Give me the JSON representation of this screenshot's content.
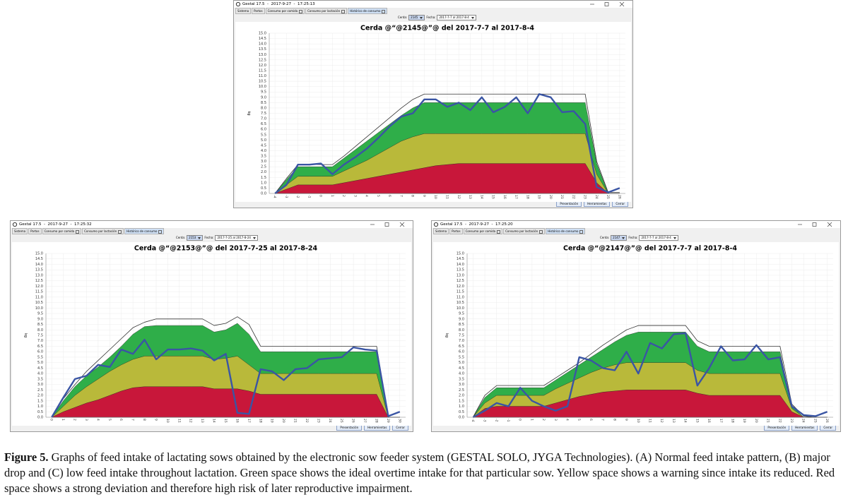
{
  "windows": [
    {
      "title": "Gestal 17.5  -  2017-9-27  -  17:25:13",
      "tabs": [
        "Sistema",
        "Partos",
        "Consumo por comida",
        "Consumo por lactación",
        "Histórico de consumo"
      ],
      "sow_label": "Cerda:",
      "sow": "2145",
      "date_label": "Fecha:",
      "range": "2017-7-7 al 2017-8-4",
      "buttons": [
        "Presentación",
        "Herramientas",
        "Cerrar"
      ]
    },
    {
      "title": "Gestal 17.5  -  2017-9-27  -  17:25:32",
      "tabs": [
        "Sistema",
        "Partos",
        "Consumo por comida",
        "Consumo por lactación",
        "Histórico de consumo"
      ],
      "sow_label": "Cerda:",
      "sow": "2153",
      "date_label": "Fecha:",
      "range": "2017-7-25 al 2017-8-24",
      "buttons": [
        "Presentación",
        "Herramientas",
        "Cerrar"
      ]
    },
    {
      "title": "Gestal 17.5  -  2017-9-27  -  17:25:20",
      "tabs": [
        "Sistema",
        "Partos",
        "Consumo por comida",
        "Consumo por lactación",
        "Histórico de consumo"
      ],
      "sow_label": "Cerda:",
      "sow": "2147",
      "date_label": "Fecha:",
      "range": "2017-7-7 al 2017-8-4",
      "buttons": [
        "Presentación",
        "Herramientas",
        "Cerrar"
      ]
    }
  ],
  "chart_data": [
    {
      "type": "area",
      "title": "Cerda @“@2145@”@ del 2017-7-7 al 2017-8-4",
      "ylabel": "kg",
      "grid": true,
      "categories": [
        "-4",
        "-3",
        "-2",
        "-1",
        "0",
        "1",
        "2",
        "3",
        "4",
        "5",
        "6",
        "7",
        "8",
        "9",
        "10",
        "11",
        "12",
        "13",
        "14",
        "15",
        "16",
        "17",
        "18",
        "19",
        "20",
        "21",
        "22",
        "23",
        "24",
        "25",
        "26"
      ],
      "ylim": [
        0,
        15
      ],
      "yticks": [
        {
          "value": 0,
          "label": "0.0"
        },
        {
          "value": 0.5,
          "label": "0.5"
        },
        {
          "value": 1,
          "label": "1.0"
        },
        {
          "value": 1.5,
          "label": "1.5"
        },
        {
          "value": 2,
          "label": "2.0"
        },
        {
          "value": 2.5,
          "label": "2.5"
        },
        {
          "value": 3,
          "label": "3.0"
        },
        {
          "value": 3.5,
          "label": "3.5"
        },
        {
          "value": 4,
          "label": "4.0"
        },
        {
          "value": 4.5,
          "label": "4.5"
        },
        {
          "value": 5,
          "label": "5.0"
        },
        {
          "value": 5.5,
          "label": "5.5"
        },
        {
          "value": 6,
          "label": "6.0"
        },
        {
          "value": 6.5,
          "label": "6.5"
        },
        {
          "value": 7,
          "label": "7.0"
        },
        {
          "value": 7.5,
          "label": "7.5"
        },
        {
          "value": 8,
          "label": "8.0"
        },
        {
          "value": 8.5,
          "label": "8.5"
        },
        {
          "value": 9,
          "label": "9.0"
        },
        {
          "value": 9.5,
          "label": "9.5"
        },
        {
          "value": 10,
          "label": "10.0"
        },
        {
          "value": 10.5,
          "label": "10.5"
        },
        {
          "value": 11,
          "label": "11.0"
        },
        {
          "value": 11.5,
          "label": "11.5"
        },
        {
          "value": 12,
          "label": "12.0"
        },
        {
          "value": 12.5,
          "label": "12.5"
        },
        {
          "value": 13,
          "label": "13.0"
        },
        {
          "value": 13.5,
          "label": "13.5"
        },
        {
          "value": 14,
          "label": "14.0"
        },
        {
          "value": 14.5,
          "label": "14.5"
        },
        {
          "value": 15,
          "label": "15.0"
        }
      ],
      "series": [
        {
          "color": "#2fae49",
          "area": true,
          "values": [
            0,
            1.3,
            2.5,
            2.5,
            2.5,
            2.5,
            3.3,
            4.1,
            4.9,
            5.7,
            6.5,
            7.3,
            8.0,
            8.5,
            8.5,
            8.5,
            8.5,
            8.5,
            8.5,
            8.5,
            8.5,
            8.5,
            8.5,
            8.5,
            8.5,
            8.5,
            8.5,
            8.5,
            2.8,
            0,
            0
          ]
        },
        {
          "color": "#b9b93a",
          "area": true,
          "values": [
            0,
            0.8,
            1.6,
            1.6,
            1.6,
            1.6,
            2.1,
            2.6,
            3.1,
            3.7,
            4.3,
            4.9,
            5.3,
            5.6,
            5.6,
            5.6,
            5.6,
            5.6,
            5.6,
            5.6,
            5.6,
            5.6,
            5.6,
            5.6,
            5.6,
            5.6,
            5.6,
            5.6,
            1.8,
            0,
            0
          ]
        },
        {
          "color": "#c8173a",
          "area": true,
          "values": [
            0,
            0.4,
            0.8,
            0.8,
            0.8,
            0.8,
            1.0,
            1.2,
            1.4,
            1.6,
            1.8,
            2.0,
            2.2,
            2.4,
            2.6,
            2.7,
            2.8,
            2.8,
            2.8,
            2.8,
            2.8,
            2.8,
            2.8,
            2.8,
            2.8,
            2.8,
            2.8,
            2.8,
            1.0,
            0,
            0
          ]
        },
        {
          "color": "#333333",
          "area": false,
          "values": [
            0,
            1.4,
            2.7,
            2.7,
            2.7,
            2.7,
            3.5,
            4.4,
            5.3,
            6.2,
            7.1,
            8.0,
            8.8,
            9.3,
            9.3,
            9.3,
            9.3,
            9.3,
            9.3,
            9.3,
            9.3,
            9.3,
            9.3,
            9.3,
            9.3,
            9.3,
            9.3,
            9.3,
            3.0,
            0.1,
            0.1
          ]
        },
        {
          "color": "#3a55a4",
          "area": false,
          "values": [
            0,
            0.8,
            2.7,
            2.7,
            2.8,
            1.8,
            2.7,
            3.4,
            4.2,
            5.2,
            6.3,
            7.2,
            7.5,
            8.8,
            8.8,
            8.1,
            8.5,
            7.8,
            9.0,
            7.6,
            8.1,
            9.0,
            7.5,
            9.3,
            9.0,
            7.6,
            7.7,
            6.5,
            0.6,
            0.1,
            0.5
          ]
        }
      ]
    },
    {
      "type": "area",
      "title": "Cerda @“@2153@”@ del 2017-7-25 al 2017-8-24",
      "ylabel": "kg",
      "grid": true,
      "categories": [
        "0",
        "1",
        "2",
        "3",
        "4",
        "5",
        "6",
        "7",
        "8",
        "9",
        "10",
        "11",
        "12",
        "13",
        "14",
        "15",
        "16",
        "17",
        "18",
        "19",
        "20",
        "21",
        "22",
        "23",
        "24",
        "25",
        "26",
        "27",
        "28",
        "29",
        "30"
      ],
      "ylim": [
        0,
        15
      ],
      "yticks": [
        {
          "value": 0,
          "label": "0.0"
        },
        {
          "value": 0.5,
          "label": "0.5"
        },
        {
          "value": 1,
          "label": "1.0"
        },
        {
          "value": 1.5,
          "label": "1.5"
        },
        {
          "value": 2,
          "label": "2.0"
        },
        {
          "value": 2.5,
          "label": "2.5"
        },
        {
          "value": 3,
          "label": "3.0"
        },
        {
          "value": 3.5,
          "label": "3.5"
        },
        {
          "value": 4,
          "label": "4.0"
        },
        {
          "value": 4.5,
          "label": "4.5"
        },
        {
          "value": 5,
          "label": "5.0"
        },
        {
          "value": 5.5,
          "label": "5.5"
        },
        {
          "value": 6,
          "label": "6.0"
        },
        {
          "value": 6.5,
          "label": "6.5"
        },
        {
          "value": 7,
          "label": "7.0"
        },
        {
          "value": 7.5,
          "label": "7.5"
        },
        {
          "value": 8,
          "label": "8.0"
        },
        {
          "value": 8.5,
          "label": "8.5"
        },
        {
          "value": 9,
          "label": "9.0"
        },
        {
          "value": 9.5,
          "label": "9.5"
        },
        {
          "value": 10,
          "label": "10.0"
        },
        {
          "value": 10.5,
          "label": "10.5"
        },
        {
          "value": 11,
          "label": "11.0"
        },
        {
          "value": 11.5,
          "label": "11.5"
        },
        {
          "value": 12,
          "label": "12.0"
        },
        {
          "value": 12.5,
          "label": "12.5"
        },
        {
          "value": 13,
          "label": "13.0"
        },
        {
          "value": 13.5,
          "label": "13.5"
        },
        {
          "value": 14,
          "label": "14.0"
        },
        {
          "value": 14.5,
          "label": "14.5"
        },
        {
          "value": 15,
          "label": "15.0"
        }
      ],
      "series": [
        {
          "color": "#2fae49",
          "area": true,
          "values": [
            0,
            1.5,
            2.8,
            3.8,
            4.6,
            5.5,
            6.5,
            7.6,
            8.3,
            8.4,
            8.4,
            8.4,
            8.4,
            8.4,
            7.8,
            8.0,
            8.6,
            7.6,
            6.0,
            6.0,
            6.0,
            6.0,
            6.0,
            6.0,
            6.0,
            6.0,
            6.0,
            6.0,
            6.0,
            0,
            0
          ]
        },
        {
          "color": "#b9b93a",
          "area": true,
          "values": [
            0,
            1.0,
            2.0,
            2.8,
            3.5,
            4.2,
            4.8,
            5.3,
            5.6,
            5.6,
            5.6,
            5.6,
            5.6,
            5.6,
            5.3,
            5.4,
            5.6,
            4.8,
            4.0,
            4.0,
            4.0,
            4.0,
            4.0,
            4.0,
            4.0,
            4.0,
            4.0,
            4.0,
            4.0,
            0,
            0
          ]
        },
        {
          "color": "#c8173a",
          "area": true,
          "values": [
            0,
            0.5,
            0.9,
            1.3,
            1.6,
            2.0,
            2.4,
            2.7,
            2.8,
            2.8,
            2.8,
            2.8,
            2.8,
            2.8,
            2.6,
            2.6,
            2.6,
            2.4,
            2.1,
            2.1,
            2.1,
            2.1,
            2.1,
            2.1,
            2.1,
            2.1,
            2.1,
            2.1,
            2.1,
            0,
            0
          ]
        },
        {
          "color": "#333333",
          "area": false,
          "values": [
            0,
            1.7,
            3.0,
            4.2,
            5.2,
            6.2,
            7.2,
            8.2,
            8.7,
            9.0,
            9.0,
            9.0,
            9.0,
            9.0,
            8.4,
            8.6,
            9.2,
            8.5,
            6.5,
            6.5,
            6.5,
            6.5,
            6.5,
            6.5,
            6.5,
            6.5,
            6.5,
            6.5,
            6.5,
            0,
            0
          ]
        },
        {
          "color": "#3a55a4",
          "area": false,
          "values": [
            0,
            1.8,
            3.5,
            3.8,
            4.8,
            4.6,
            6.2,
            5.8,
            7.1,
            5.3,
            6.2,
            6.2,
            6.3,
            6.1,
            5.2,
            5.8,
            0.4,
            0.3,
            4.4,
            4.2,
            3.4,
            4.4,
            4.5,
            5.3,
            5.4,
            5.5,
            6.4,
            6.2,
            6.1,
            0.1,
            0.5
          ]
        }
      ]
    },
    {
      "type": "area",
      "title": "Cerda @“@2147@”@ del 2017-7-7 al 2017-8-4",
      "ylabel": "kg",
      "grid": true,
      "categories": [
        "-4",
        "-3",
        "-2",
        "-1",
        "0",
        "1",
        "2",
        "3",
        "4",
        "5",
        "6",
        "7",
        "8",
        "9",
        "10",
        "11",
        "12",
        "13",
        "14",
        "15",
        "16",
        "17",
        "18",
        "19",
        "20",
        "21",
        "22",
        "23",
        "24",
        "25",
        "26"
      ],
      "ylim": [
        0,
        15
      ],
      "yticks": [
        {
          "value": 0,
          "label": "0.0"
        },
        {
          "value": 0.5,
          "label": "0.5"
        },
        {
          "value": 1,
          "label": "1.0"
        },
        {
          "value": 1.5,
          "label": "1.5"
        },
        {
          "value": 2,
          "label": "2.0"
        },
        {
          "value": 2.5,
          "label": "2.5"
        },
        {
          "value": 3,
          "label": "3.0"
        },
        {
          "value": 3.5,
          "label": "3.5"
        },
        {
          "value": 4,
          "label": "4.0"
        },
        {
          "value": 4.5,
          "label": "4.5"
        },
        {
          "value": 5,
          "label": "5.0"
        },
        {
          "value": 5.5,
          "label": "5.5"
        },
        {
          "value": 6,
          "label": "6.0"
        },
        {
          "value": 6.5,
          "label": "6.5"
        },
        {
          "value": 7,
          "label": "7.0"
        },
        {
          "value": 7.5,
          "label": "7.5"
        },
        {
          "value": 8,
          "label": "8.0"
        },
        {
          "value": 8.5,
          "label": "8.5"
        },
        {
          "value": 9,
          "label": "9.0"
        },
        {
          "value": 9.5,
          "label": "9.5"
        },
        {
          "value": 10,
          "label": "10.0"
        },
        {
          "value": 10.5,
          "label": "10.5"
        },
        {
          "value": 11,
          "label": "11.0"
        },
        {
          "value": 11.5,
          "label": "11.5"
        },
        {
          "value": 12,
          "label": "12.0"
        },
        {
          "value": 12.5,
          "label": "12.5"
        },
        {
          "value": 13,
          "label": "13.0"
        },
        {
          "value": 13.5,
          "label": "13.5"
        },
        {
          "value": 14,
          "label": "14.0"
        },
        {
          "value": 14.5,
          "label": "14.5"
        },
        {
          "value": 15,
          "label": "15.0"
        }
      ],
      "series": [
        {
          "color": "#2fae49",
          "area": true,
          "values": [
            0,
            1.8,
            2.7,
            2.7,
            2.7,
            2.7,
            2.7,
            3.4,
            4.1,
            4.8,
            5.5,
            6.2,
            6.9,
            7.5,
            7.8,
            7.8,
            7.8,
            7.8,
            7.8,
            6.5,
            6.0,
            6.0,
            6.0,
            6.0,
            6.0,
            6.0,
            6.0,
            1.0,
            0,
            0,
            0
          ]
        },
        {
          "color": "#b9b93a",
          "area": true,
          "values": [
            0,
            1.3,
            2.0,
            2.0,
            2.0,
            2.0,
            2.0,
            2.6,
            3.1,
            3.6,
            4.1,
            4.5,
            4.8,
            5.0,
            5.0,
            5.0,
            5.0,
            5.0,
            5.0,
            4.3,
            4.0,
            4.0,
            4.0,
            4.0,
            4.0,
            4.0,
            4.0,
            0.8,
            0,
            0,
            0
          ]
        },
        {
          "color": "#c8173a",
          "area": true,
          "values": [
            0,
            0.8,
            1.0,
            1.0,
            1.0,
            1.0,
            1.0,
            1.3,
            1.6,
            1.9,
            2.1,
            2.3,
            2.4,
            2.5,
            2.5,
            2.5,
            2.5,
            2.5,
            2.5,
            2.2,
            2.0,
            2.0,
            2.0,
            2.0,
            2.0,
            2.0,
            2.0,
            0.5,
            0,
            0,
            0
          ]
        },
        {
          "color": "#333333",
          "area": false,
          "values": [
            0,
            2.0,
            2.9,
            2.9,
            2.9,
            2.9,
            2.9,
            3.6,
            4.3,
            5.0,
            5.8,
            6.6,
            7.3,
            8.0,
            8.4,
            8.4,
            8.4,
            8.4,
            8.4,
            7.0,
            6.5,
            6.5,
            6.5,
            6.5,
            6.5,
            6.5,
            6.5,
            1.2,
            0.1,
            0,
            0
          ]
        },
        {
          "color": "#3a55a4",
          "area": false,
          "values": [
            0,
            0.6,
            1.3,
            1.0,
            2.7,
            1.5,
            1.0,
            0.6,
            1.0,
            5.5,
            5.2,
            4.5,
            4.3,
            6.0,
            4.0,
            6.8,
            6.3,
            7.6,
            7.7,
            2.9,
            4.5,
            6.5,
            5.2,
            5.3,
            6.6,
            5.3,
            5.5,
            1.0,
            0.2,
            0.1,
            0.5
          ]
        }
      ]
    }
  ],
  "caption": {
    "label": "Figure 5.",
    "text": "Graphs of feed intake of lactating sows obtained by the electronic sow feeder system (GESTAL SOLO, JYGA Technologies). (A) Normal feed intake pattern, (B) major drop and (C) low feed intake throughout lactation. Green space shows the ideal overtime intake for that particular sow. Yellow space shows a warning since intake its reduced. Red space shows a strong deviation and therefore high risk of later reproductive impairment."
  }
}
